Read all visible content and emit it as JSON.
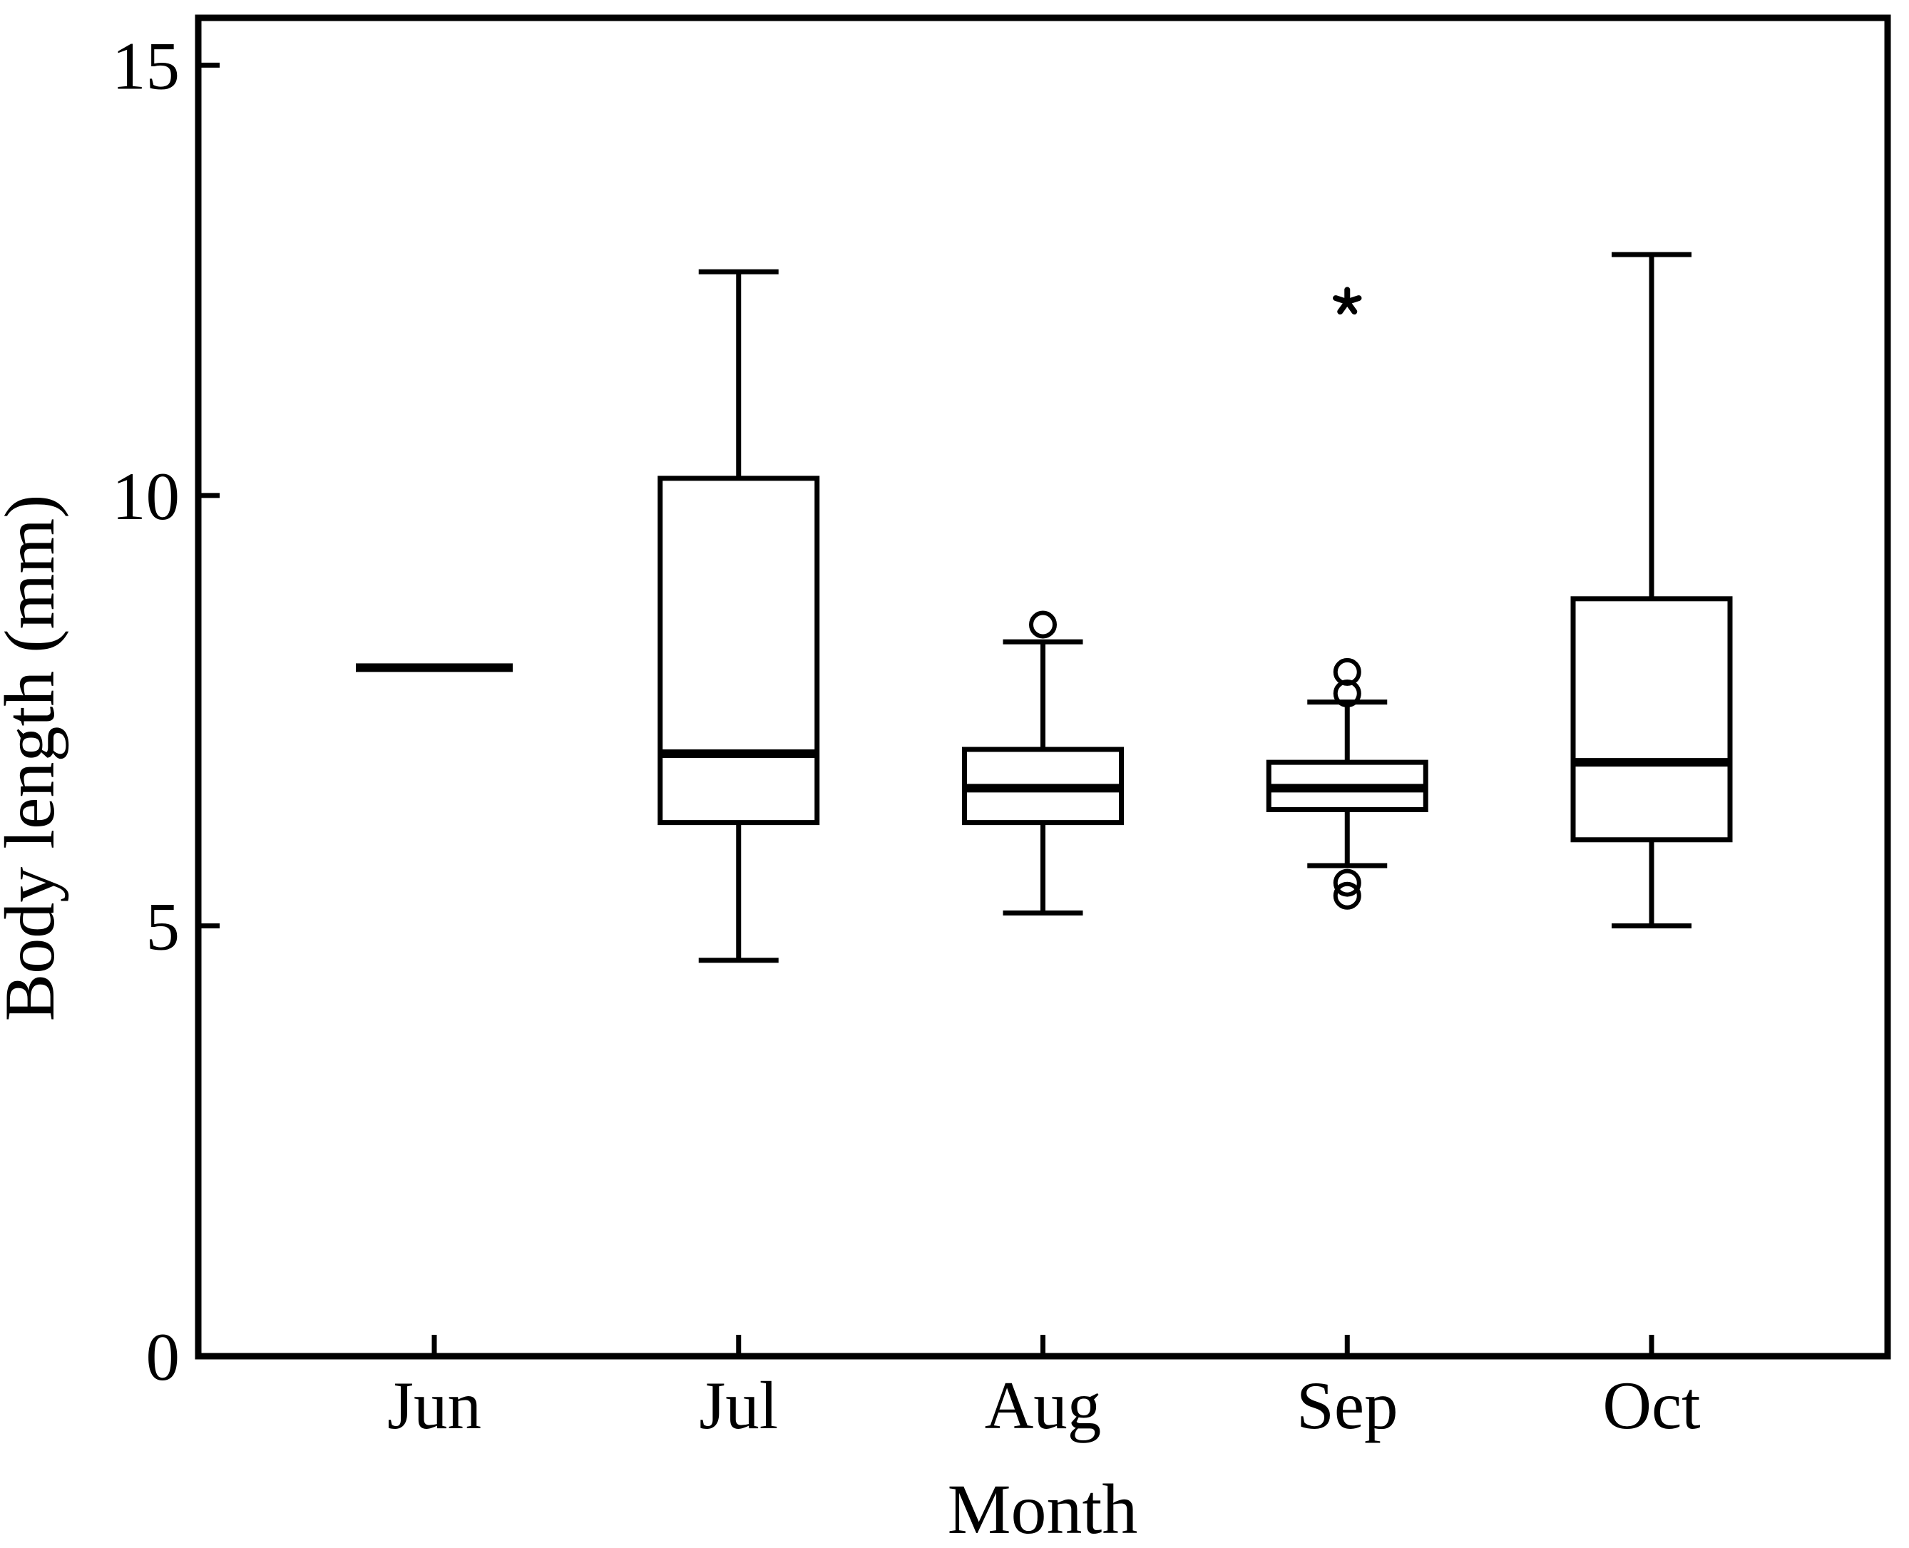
{
  "figure": {
    "background": "#ffffff",
    "ink_color": "#000000"
  },
  "chart_data": {
    "type": "boxplot",
    "xlabel": "Month",
    "ylabel": "Body length (mm)",
    "categories": [
      "Jun",
      "Jul",
      "Aug",
      "Sep",
      "Oct"
    ],
    "y_axis": {
      "min": 0,
      "max": 15.55,
      "ticks": [
        0,
        5,
        10,
        15
      ],
      "tick_labels": [
        "0",
        "5",
        "10",
        "15"
      ]
    },
    "grid": "off",
    "legend": "none",
    "outlier_marker": "circle",
    "extreme_marker": "asterisk",
    "series": [
      {
        "month": "Jun",
        "whisker_low": null,
        "q1": null,
        "median": 8.0,
        "q3": null,
        "whisker_high": null,
        "outliers": [],
        "extremes": []
      },
      {
        "month": "Jul",
        "whisker_low": 4.6,
        "q1": 6.2,
        "median": 7.0,
        "q3": 10.2,
        "whisker_high": 12.6,
        "outliers": [],
        "extremes": []
      },
      {
        "month": "Aug",
        "whisker_low": 5.15,
        "q1": 6.2,
        "median": 6.6,
        "q3": 7.05,
        "whisker_high": 8.3,
        "outliers": [
          8.5
        ],
        "extremes": []
      },
      {
        "month": "Sep",
        "whisker_low": 5.7,
        "q1": 6.35,
        "median": 6.6,
        "q3": 6.9,
        "whisker_high": 7.6,
        "outliers": [
          7.95,
          7.7,
          5.5,
          5.35
        ],
        "extremes": [
          12.25
        ]
      },
      {
        "month": "Oct",
        "whisker_low": 5.0,
        "q1": 6.0,
        "median": 6.9,
        "q3": 8.8,
        "whisker_high": 12.8,
        "outliers": [],
        "extremes": []
      }
    ]
  }
}
